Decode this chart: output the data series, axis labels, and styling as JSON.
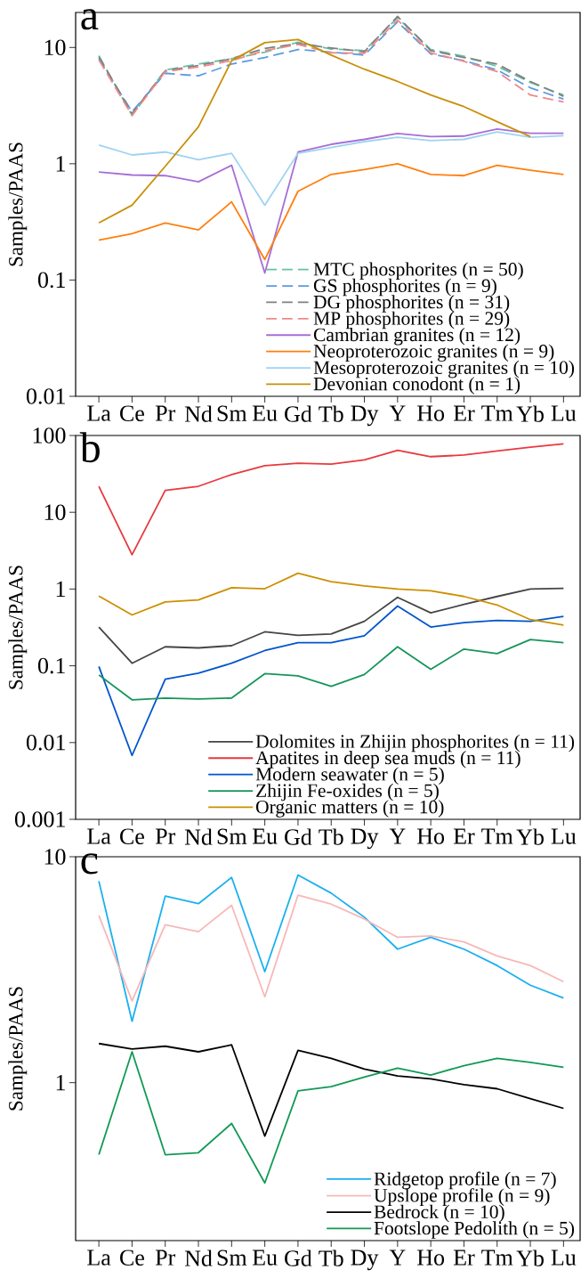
{
  "chart_data": [
    {
      "type": "line",
      "title": "a",
      "ylabel": "Samples/PAAS",
      "log": true,
      "legend": "bottom right",
      "ylim": [
        0.01,
        20
      ],
      "yticks": [
        0.01,
        0.1,
        1,
        10
      ],
      "categories": [
        "La",
        "Ce",
        "Pr",
        "Nd",
        "Sm",
        "Eu",
        "Gd",
        "Tb",
        "Dy",
        "Y",
        "Ho",
        "Er",
        "Tm",
        "Yb",
        "Lu"
      ],
      "series": [
        {
          "name": "MTC phosphorites (n = 50)",
          "color": "#66c2a5",
          "line_style": "dashed",
          "values": [
            8.5,
            2.6,
            6.4,
            7.2,
            8.0,
            9.1,
            11.1,
            9.7,
            9.4,
            18,
            9.6,
            8.4,
            6.9,
            5.0,
            3.9
          ]
        },
        {
          "name": "GS phosphorites (n = 9)",
          "color": "#5b9be0",
          "line_style": "dashed",
          "values": [
            8.0,
            2.8,
            6.0,
            5.7,
            7.2,
            8.2,
            9.6,
            9.1,
            8.6,
            16.6,
            8.8,
            7.7,
            6.4,
            4.5,
            3.6
          ]
        },
        {
          "name": "DG phosphorites (n = 31)",
          "color": "#808080",
          "line_style": "dashed",
          "values": [
            8.3,
            2.7,
            6.3,
            7.0,
            8.0,
            9.8,
            10.8,
            9.9,
            9.2,
            18.5,
            9.4,
            8.2,
            7.2,
            5.1,
            3.8
          ]
        },
        {
          "name": "MP phosphorites (n = 29)",
          "color": "#f08a8a",
          "line_style": "dashed",
          "values": [
            7.8,
            2.6,
            6.2,
            6.8,
            7.7,
            9.4,
            10.6,
            9.0,
            8.9,
            17.2,
            9.0,
            7.6,
            6.2,
            3.9,
            3.4
          ]
        },
        {
          "name": "Cambrian granites (n = 12)",
          "color": "#a66fd6",
          "line_style": "solid",
          "values": [
            0.85,
            0.8,
            0.79,
            0.7,
            0.97,
            0.115,
            1.26,
            1.47,
            1.62,
            1.82,
            1.71,
            1.73,
            1.99,
            1.83,
            1.83
          ]
        },
        {
          "name": "Neoproterozoic granites (n = 9)",
          "color": "#ff7f0e",
          "line_style": "solid",
          "values": [
            0.22,
            0.25,
            0.31,
            0.27,
            0.47,
            0.15,
            0.58,
            0.81,
            0.89,
            1.0,
            0.81,
            0.79,
            0.97,
            0.88,
            0.81
          ]
        },
        {
          "name": "Mesoproterozoic granites (n = 10)",
          "color": "#9fd3f0",
          "line_style": "solid",
          "values": [
            1.45,
            1.19,
            1.26,
            1.08,
            1.23,
            0.44,
            1.23,
            1.38,
            1.55,
            1.69,
            1.58,
            1.62,
            1.88,
            1.69,
            1.74
          ]
        },
        {
          "name": "Devonian conodont (n = 1)",
          "color": "#c8900a",
          "line_style": "solid",
          "values": [
            0.31,
            0.44,
            0.95,
            2.08,
            7.7,
            11.0,
            11.7,
            8.6,
            6.5,
            5.1,
            3.9,
            3.1,
            2.3,
            1.71,
            null
          ]
        }
      ]
    },
    {
      "type": "line",
      "title": "b",
      "ylabel": "Samples/PAAS",
      "log": true,
      "legend": "bottom right",
      "ylim": [
        0.001,
        100
      ],
      "yticks": [
        0.001,
        0.01,
        0.1,
        1,
        10,
        100
      ],
      "categories": [
        "La",
        "Ce",
        "Pr",
        "Nd",
        "Sm",
        "Eu",
        "Gd",
        "Tb",
        "Dy",
        "Y",
        "Ho",
        "Er",
        "Tm",
        "Yb",
        "Lu"
      ],
      "series": [
        {
          "name": "Dolomites in Zhijin phosphorites (n = 11)",
          "color": "#454545",
          "values": [
            0.32,
            0.108,
            0.177,
            0.171,
            0.183,
            0.277,
            0.25,
            0.26,
            0.38,
            0.78,
            0.49,
            0.63,
            0.8,
            1.0,
            1.02
          ]
        },
        {
          "name": "Apatites in deep sea muds (n = 11)",
          "color": "#e8393f",
          "values": [
            21.8,
            2.8,
            19.3,
            21.8,
            31,
            40.5,
            43.5,
            42.5,
            48,
            64,
            53,
            55.6,
            63,
            70.6,
            78
          ]
        },
        {
          "name": "Modern seawater (n = 5)",
          "color": "#0055cc",
          "values": [
            0.098,
            0.0068,
            0.067,
            0.08,
            0.108,
            0.158,
            0.2,
            0.2,
            0.246,
            0.6,
            0.32,
            0.365,
            0.39,
            0.38,
            0.44
          ]
        },
        {
          "name": "Zhijin Fe-oxides (n = 5)",
          "color": "#16955a",
          "values": [
            0.076,
            0.036,
            0.038,
            0.037,
            0.038,
            0.079,
            0.074,
            0.054,
            0.077,
            0.177,
            0.09,
            0.165,
            0.144,
            0.22,
            0.2
          ]
        },
        {
          "name": "Organic matters (n = 10)",
          "color": "#cc9000",
          "values": [
            0.81,
            0.46,
            0.68,
            0.72,
            1.04,
            1.01,
            1.61,
            1.25,
            1.1,
            1.0,
            0.95,
            0.8,
            0.62,
            0.4,
            0.34
          ]
        }
      ]
    },
    {
      "type": "line",
      "title": "c",
      "ylabel": "Samples/PAAS",
      "log": true,
      "legend": "bottom right",
      "ylim": [
        0.2,
        10
      ],
      "yticks": [
        1,
        10
      ],
      "categories": [
        "La",
        "Ce",
        "Pr",
        "Nd",
        "Sm",
        "Eu",
        "Gd",
        "Tb",
        "Dy",
        "Y",
        "Ho",
        "Er",
        "Tm",
        "Yb",
        "Lu"
      ],
      "series": [
        {
          "name": "Ridgetop profile (n = 7)",
          "color": "#1ab0f0",
          "values": [
            7.8,
            1.87,
            6.7,
            6.2,
            8.1,
            3.1,
            8.3,
            6.9,
            5.4,
            3.9,
            4.4,
            3.9,
            3.3,
            2.7,
            2.37
          ]
        },
        {
          "name": "Upslope profile (n = 9)",
          "color": "#f8b8b8",
          "values": [
            5.5,
            2.3,
            5.0,
            4.66,
            6.1,
            2.4,
            6.76,
            6.17,
            5.3,
            4.4,
            4.46,
            4.2,
            3.64,
            3.3,
            2.8
          ]
        },
        {
          "name": "Bedrock (n = 10)",
          "color": "#000000",
          "values": [
            1.49,
            1.41,
            1.45,
            1.37,
            1.47,
            0.58,
            1.39,
            1.28,
            1.15,
            1.07,
            1.04,
            0.98,
            0.94,
            0.85,
            0.77
          ]
        },
        {
          "name": "Footslope Pedolith (n = 5)",
          "color": "#119955",
          "values": [
            0.48,
            1.37,
            0.48,
            0.49,
            0.66,
            0.36,
            0.92,
            0.96,
            1.06,
            1.16,
            1.08,
            1.19,
            1.28,
            1.23,
            1.17
          ]
        }
      ]
    }
  ]
}
